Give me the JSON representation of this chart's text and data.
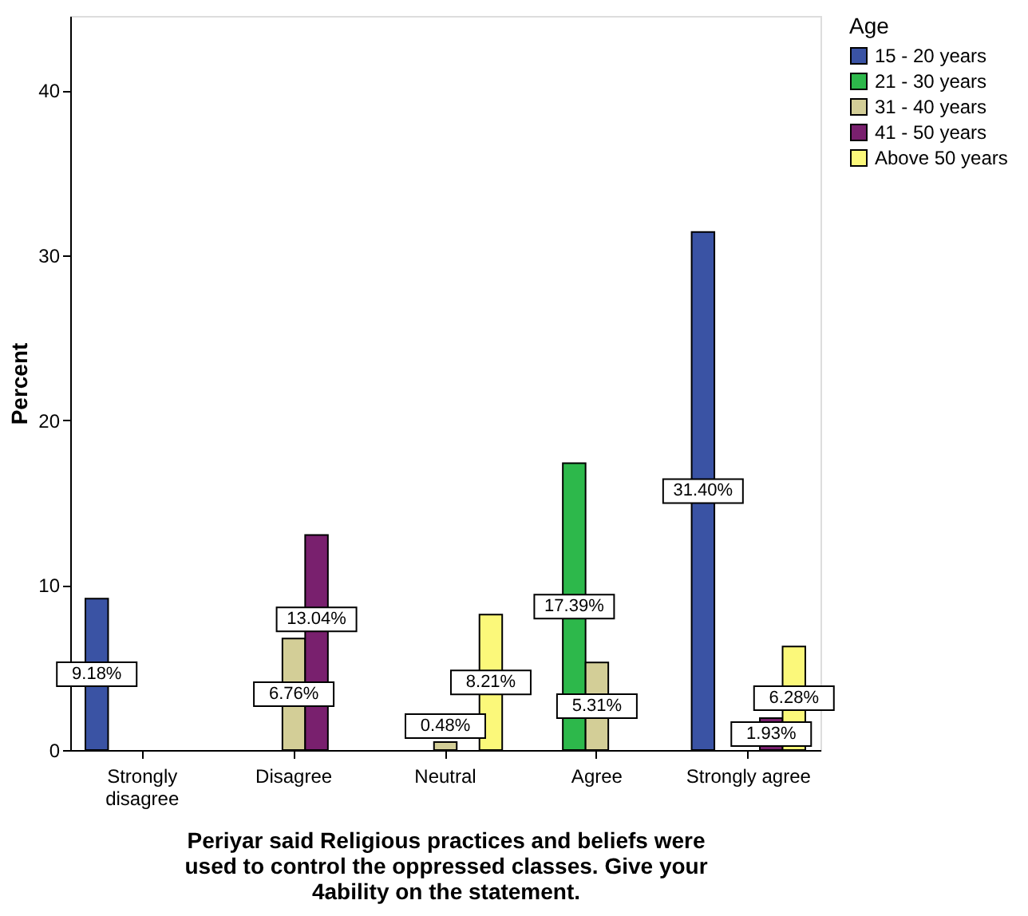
{
  "chart_data": {
    "type": "bar",
    "xlabel": "Periyar said Religious practices and beliefs were used to control the oppressed classes. Give your 4ability on the statement.",
    "ylabel": "Percent",
    "legend_title": "Age",
    "categories": [
      "Strongly disagree",
      "Disagree",
      "Neutral",
      "Agree",
      "Strongly agree"
    ],
    "series": [
      {
        "name": "15 - 20 years",
        "color": "#3a53a4",
        "values": [
          9.18,
          null,
          null,
          null,
          31.4
        ],
        "value_labels": [
          "9.18%",
          null,
          null,
          null,
          "31.40%"
        ]
      },
      {
        "name": "21 - 30 years",
        "color": "#2db84b",
        "values": [
          null,
          null,
          null,
          17.39,
          null
        ],
        "value_labels": [
          null,
          null,
          null,
          "17.39%",
          null
        ]
      },
      {
        "name": "31 - 40 years",
        "color": "#d3ce97",
        "values": [
          null,
          6.76,
          0.48,
          5.31,
          null
        ],
        "value_labels": [
          null,
          "6.76%",
          "0.48%",
          "5.31%",
          null
        ]
      },
      {
        "name": "41 - 50 years",
        "color": "#79206e",
        "values": [
          null,
          13.04,
          null,
          null,
          1.93
        ],
        "value_labels": [
          null,
          "13.04%",
          null,
          null,
          "1.93%"
        ]
      },
      {
        "name": "Above 50 years",
        "color": "#fbf87a",
        "values": [
          null,
          null,
          8.21,
          null,
          6.28
        ],
        "value_labels": [
          null,
          null,
          "8.21%",
          null,
          "6.28%"
        ]
      }
    ],
    "ylim": [
      0,
      44.5
    ],
    "yticks": [
      0,
      10,
      20,
      30,
      40
    ],
    "grid": false,
    "legend": "right"
  }
}
